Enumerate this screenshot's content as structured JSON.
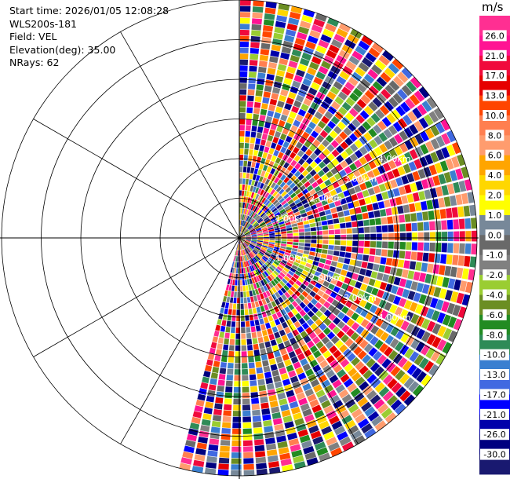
{
  "header": {
    "start_time": "Start time: 2026/01/05 12:08:28",
    "instrument": "WLS200s-181",
    "field": "Field: VEL",
    "elevation": "Elevation(deg): 35.00",
    "nrays": "NRays: 62"
  },
  "chart_data": {
    "type": "heatmap",
    "projection": "polar PPI sector",
    "azimuth_start_deg": 0,
    "azimuth_end_deg": 195,
    "n_rays": 62,
    "max_range_km": 6.0,
    "range_rings_km": [
      1.0,
      2.0,
      3.0,
      4.0,
      5.0
    ],
    "range_labels_upper": [
      "1.00km",
      "2.00km",
      "3.00km",
      "4.00km"
    ],
    "range_labels_lower": [
      "1.00km",
      "2.00km",
      "3.00km",
      "4.00km"
    ],
    "spoke_interval_deg": 30,
    "colorbar": {
      "unit": "m/s",
      "tick_labels": [
        "26.0",
        "21.0",
        "17.0",
        "13.0",
        "10.0",
        "8.0",
        "6.0",
        "4.0",
        "2.0",
        "1.0",
        "0.0",
        "-1.0",
        "-2.0",
        "-4.0",
        "-6.0",
        "-8.0",
        "-10.0",
        "-13.0",
        "-17.0",
        "-21.0",
        "-26.0",
        "-30.0"
      ],
      "colors": [
        "#ff2f92",
        "#ff1493",
        "#f00a3c",
        "#e60000",
        "#ff4500",
        "#ff7f50",
        "#ff9c6e",
        "#ffa500",
        "#ffd700",
        "#ffff00",
        "#778899",
        "#696969",
        "#808080",
        "#9acd32",
        "#6b8e23",
        "#228b22",
        "#2e8b57",
        "#3a7fd0",
        "#4169e1",
        "#0000ff",
        "#0000aa",
        "#000080",
        "#191970"
      ]
    }
  }
}
